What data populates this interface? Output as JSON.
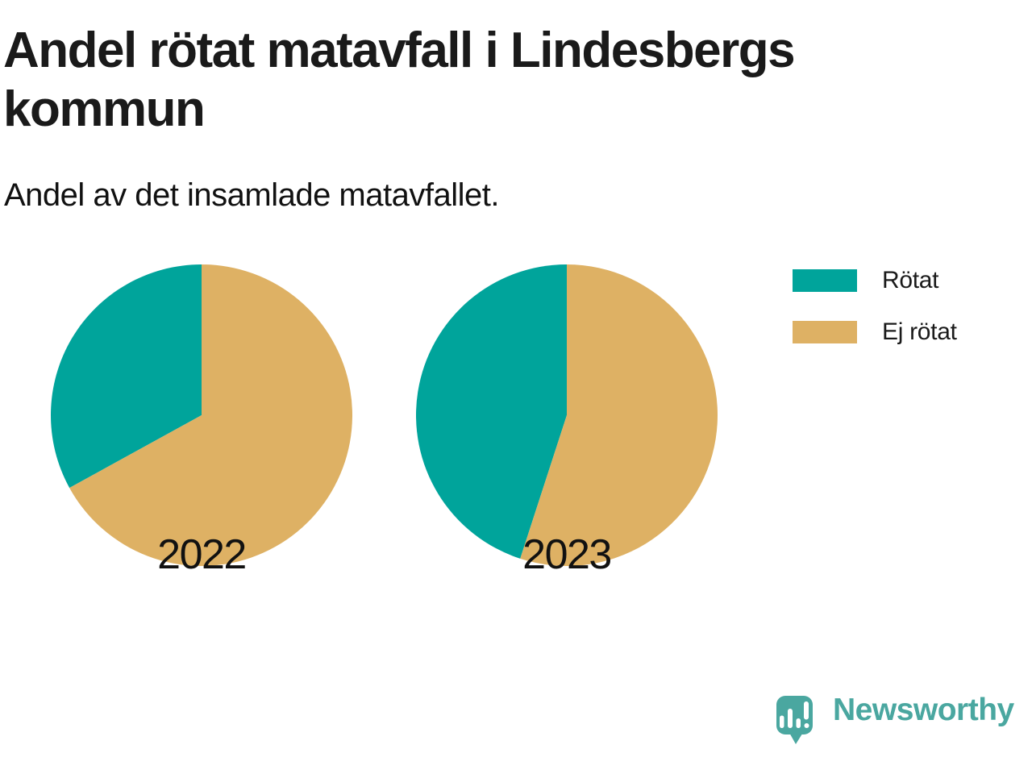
{
  "header": {
    "title": "Andel rötat matavfall i Lindesbergs kommun",
    "subtitle": "Andel av det insamlade matavfallet."
  },
  "chart_data": {
    "type": "pie",
    "title": "Andel rötat matavfall i Lindesbergs kommun",
    "subtitle": "Andel av det insamlade matavfallet.",
    "categories": [
      "2022",
      "2023"
    ],
    "series": [
      {
        "name": "Rötat",
        "color": "#00a49b",
        "values": [
          33,
          45
        ]
      },
      {
        "name": "Ej rötat",
        "color": "#deb164",
        "values": [
          67,
          55
        ]
      }
    ],
    "unit": "percent",
    "start_angle_deg": 90,
    "direction": "counterclockwise",
    "legend_position": "right",
    "background": "#ffffff"
  },
  "branding": {
    "logo_text": "Newsworthy",
    "logo_color": "#4aa7a0"
  }
}
